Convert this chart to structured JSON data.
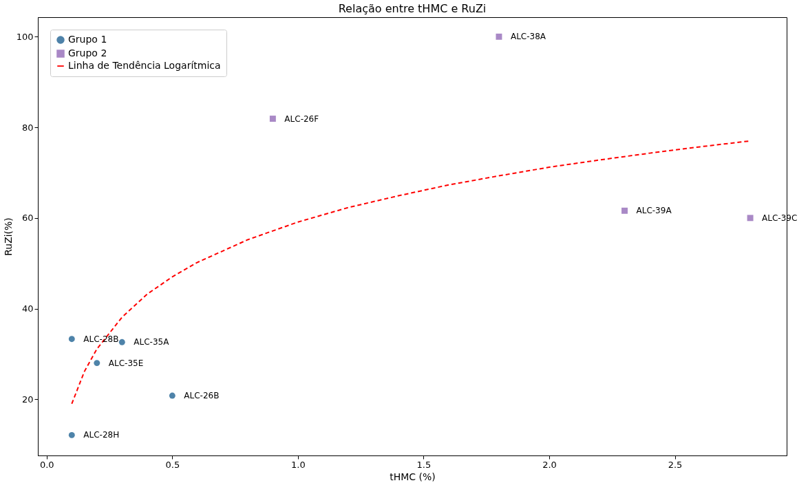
{
  "chart_data": {
    "type": "scatter",
    "title": "Relação entre tHMC e RuZi",
    "xlabel": "tHMC (%)",
    "ylabel": "RuZi(%)",
    "xlim": [
      -0.035,
      2.945
    ],
    "ylim": [
      7.6,
      104.3
    ],
    "xticks": [
      {
        "value": 0,
        "label": "0.0"
      },
      0.5,
      {
        "value": 1,
        "label": "1.0"
      },
      1.5,
      {
        "value": 2,
        "label": "2.0"
      },
      2.5
    ],
    "yticks": [
      20,
      40,
      60,
      80,
      100
    ],
    "grid": false,
    "legend": "top left",
    "series": [
      {
        "name": "Grupo 1",
        "marker": "circle",
        "color": "#3b75a0",
        "x": [
          0.1,
          0.3,
          0.2,
          0.5,
          0.1
        ],
        "values": [
          33.3,
          32.6,
          28.0,
          20.8,
          12.1
        ]
      },
      {
        "name": "Grupo 2",
        "marker": "square",
        "color": "#a07cc0",
        "x": [
          0.9,
          1.8,
          2.3,
          2.8
        ],
        "values": [
          81.9,
          100.0,
          61.6,
          60.0
        ]
      },
      {
        "name": "Linha de Tendência Logarítmica",
        "type": "line",
        "marker": "none",
        "line_style": "dashed",
        "color": "#ff0000",
        "x": [
          0.1,
          0.15,
          0.2,
          0.3,
          0.4,
          0.5,
          0.6,
          0.8,
          1.0,
          1.2,
          1.4,
          1.6,
          1.8,
          2.0,
          2.2,
          2.4,
          2.6,
          2.8
        ],
        "values": [
          19.0,
          26.1,
          31.1,
          38.1,
          43.2,
          47.0,
          50.2,
          55.2,
          59.1,
          62.3,
          64.9,
          67.3,
          69.3,
          71.2,
          72.8,
          74.3,
          75.7,
          77.0
        ]
      }
    ],
    "annotations": [
      {
        "text": "ALC-28B",
        "x": 0.1,
        "y": 33.3
      },
      {
        "text": "ALC-35A",
        "x": 0.3,
        "y": 32.6
      },
      {
        "text": "ALC-35E",
        "x": 0.2,
        "y": 28.0
      },
      {
        "text": "ALC-26B",
        "x": 0.5,
        "y": 20.8
      },
      {
        "text": "ALC-28H",
        "x": 0.1,
        "y": 12.1
      },
      {
        "text": "ALC-26F",
        "x": 0.9,
        "y": 81.9
      },
      {
        "text": "ALC-38A",
        "x": 1.8,
        "y": 100.0
      },
      {
        "text": "ALC-39A",
        "x": 2.3,
        "y": 61.6
      },
      {
        "text": "ALC-39C",
        "x": 2.8,
        "y": 60.0
      }
    ]
  }
}
